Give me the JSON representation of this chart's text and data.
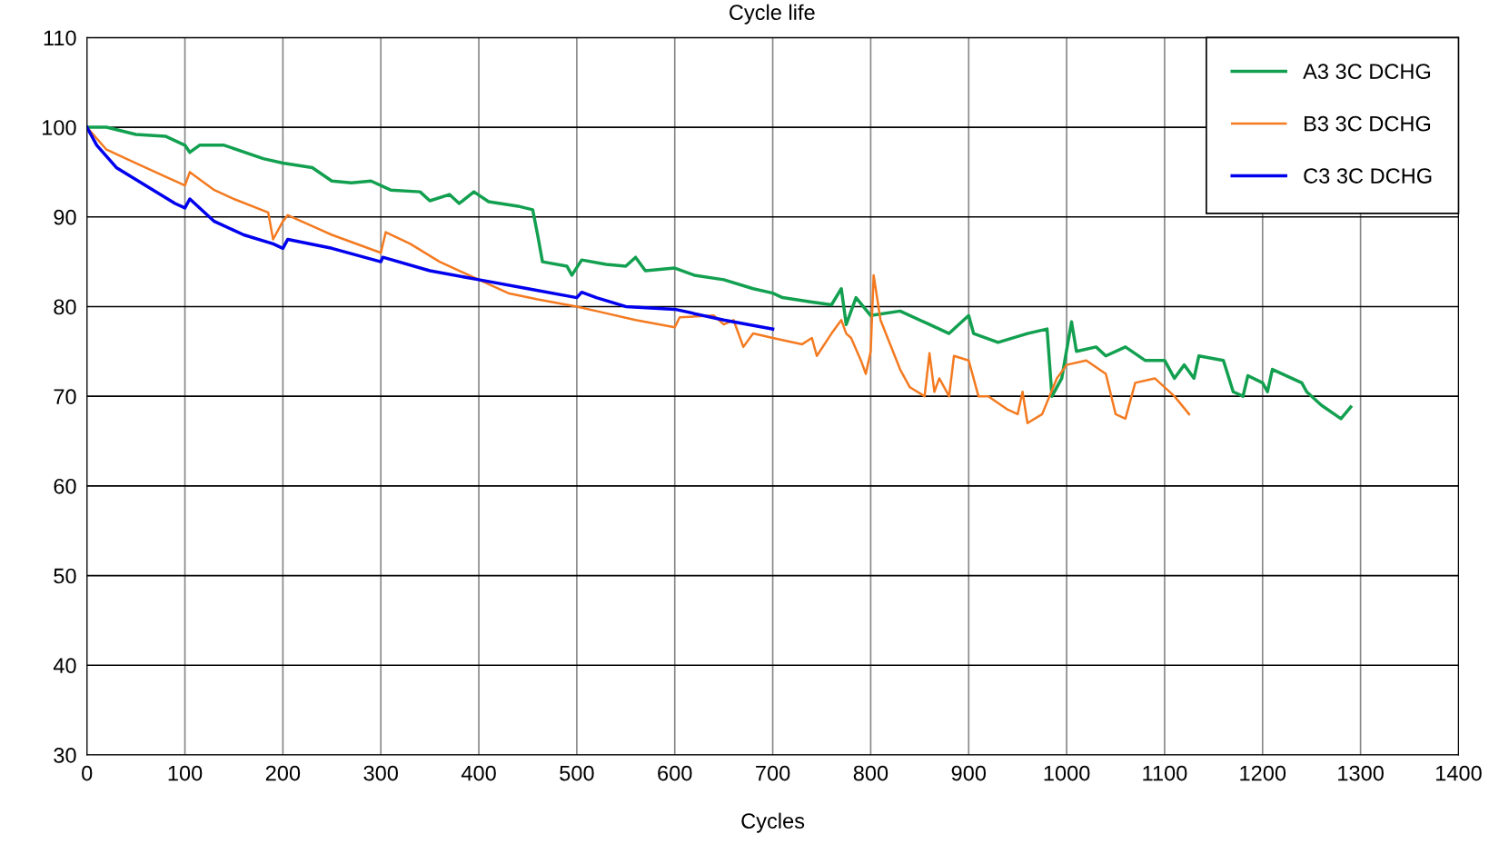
{
  "chart_data": {
    "type": "line",
    "title": "Cycle life",
    "xlabel": "Cycles",
    "xlim": [
      0,
      1400
    ],
    "xticks": [
      0,
      100,
      200,
      300,
      400,
      500,
      600,
      700,
      800,
      900,
      1000,
      1100,
      1200,
      1300,
      1400
    ],
    "ylim": [
      30,
      110
    ],
    "yticks": [
      30,
      40,
      50,
      60,
      70,
      80,
      90,
      100,
      110
    ],
    "grid": true,
    "legend": "top right",
    "marker": "none",
    "line_style": "solid",
    "series": [
      {
        "name": "A3 3C DCHG",
        "color": "#12a050",
        "x": [
          0,
          20,
          50,
          80,
          100,
          105,
          115,
          140,
          180,
          200,
          230,
          250,
          270,
          290,
          310,
          340,
          350,
          370,
          380,
          395,
          410,
          440,
          455,
          460,
          465,
          490,
          495,
          505,
          530,
          550,
          560,
          570,
          600,
          620,
          650,
          680,
          700,
          710,
          740,
          760,
          770,
          775,
          785,
          800,
          830,
          860,
          880,
          900,
          905,
          930,
          960,
          980,
          985,
          995,
          1005,
          1010,
          1030,
          1040,
          1060,
          1080,
          1100,
          1110,
          1120,
          1130,
          1135,
          1160,
          1170,
          1180,
          1185,
          1200,
          1205,
          1210,
          1240,
          1245,
          1260,
          1280,
          1290
        ],
        "values": [
          100,
          100,
          99.2,
          99,
          98,
          97.2,
          98,
          98,
          96.5,
          96,
          95.5,
          94,
          93.8,
          94,
          93,
          92.8,
          91.8,
          92.5,
          91.5,
          92.8,
          91.7,
          91.2,
          90.8,
          88,
          85,
          84.5,
          83.5,
          85.2,
          84.7,
          84.5,
          85.5,
          84,
          84.3,
          83.5,
          83,
          82,
          81.5,
          81,
          80.5,
          80.2,
          82,
          78,
          81,
          79,
          79.5,
          78,
          77,
          79,
          77,
          76,
          77,
          77.5,
          70,
          72,
          78.3,
          75,
          75.5,
          74.5,
          75.5,
          74,
          74,
          72,
          73.5,
          72,
          74.5,
          74,
          70.5,
          70,
          72.3,
          71.5,
          70.5,
          73,
          71.5,
          70.5,
          69,
          67.5,
          68.8
        ]
      },
      {
        "name": "B3 3C DCHG",
        "color": "#f47a20",
        "x": [
          0,
          20,
          50,
          80,
          100,
          105,
          130,
          150,
          185,
          190,
          200,
          205,
          250,
          300,
          305,
          330,
          360,
          400,
          430,
          460,
          500,
          520,
          560,
          600,
          605,
          640,
          650,
          660,
          670,
          680,
          700,
          730,
          740,
          745,
          760,
          770,
          775,
          780,
          790,
          795,
          800,
          803,
          810,
          830,
          840,
          855,
          860,
          865,
          870,
          880,
          885,
          900,
          910,
          920,
          940,
          950,
          955,
          960,
          975,
          990,
          1000,
          1020,
          1040,
          1050,
          1060,
          1070,
          1090,
          1110,
          1125
        ],
        "values": [
          100,
          97.5,
          96,
          94.5,
          93.5,
          95,
          93,
          92,
          90.5,
          87.5,
          89.5,
          90.2,
          88,
          86,
          88.3,
          87,
          85,
          83,
          81.5,
          80.8,
          80,
          79.5,
          78.5,
          77.7,
          78.8,
          79,
          78,
          78.5,
          75.5,
          77,
          76.5,
          75.8,
          76.5,
          74.5,
          77,
          78.5,
          77,
          76.5,
          74,
          72.5,
          75,
          83.5,
          78.5,
          73,
          71,
          70,
          74.8,
          70.5,
          72,
          70,
          74.5,
          74,
          70,
          70,
          68.5,
          68,
          70.5,
          67,
          68,
          72,
          73.5,
          74,
          72.5,
          68,
          67.5,
          71.5,
          72,
          70,
          68
        ]
      },
      {
        "name": "C3 3C DCHG",
        "color": "#0000ee",
        "x": [
          0,
          10,
          30,
          60,
          90,
          100,
          105,
          130,
          160,
          190,
          200,
          205,
          250,
          300,
          302,
          350,
          400,
          450,
          500,
          505,
          520,
          550,
          600,
          650,
          700
        ],
        "values": [
          100,
          98,
          95.5,
          93.5,
          91.5,
          91,
          92,
          89.5,
          88,
          87,
          86.5,
          87.5,
          86.5,
          85,
          85.5,
          84,
          83,
          82,
          81,
          81.6,
          81,
          80,
          79.7,
          78.5,
          77.5
        ]
      }
    ]
  }
}
